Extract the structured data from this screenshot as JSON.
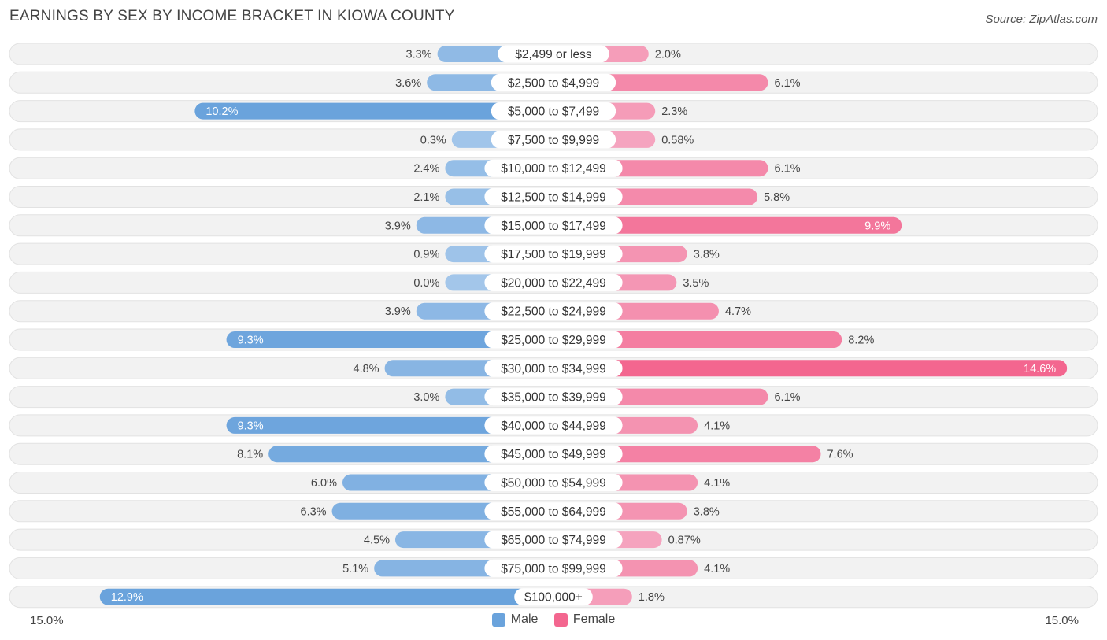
{
  "header": {
    "title": "EARNINGS BY SEX BY INCOME BRACKET IN KIOWA COUNTY",
    "source": "Source: ZipAtlas.com"
  },
  "legend": {
    "male": "Male",
    "female": "Female"
  },
  "axis": {
    "left_label": "15.0%",
    "right_label": "15.0%"
  },
  "colors": {
    "male_strong": "#6aa3dc",
    "male_light": "#a3c6ea",
    "female_strong": "#f3668f",
    "female_light": "#f5a7c1",
    "row_bg": "#f2f2f2",
    "row_border": "#e2e2e2"
  },
  "chart_data": {
    "type": "bar",
    "title": "EARNINGS BY SEX BY INCOME BRACKET IN KIOWA COUNTY",
    "orientation": "horizontal-diverging",
    "xlim": [
      -15,
      15
    ],
    "categories": [
      "$2,499 or less",
      "$2,500 to $4,999",
      "$5,000 to $7,499",
      "$7,500 to $9,999",
      "$10,000 to $12,499",
      "$12,500 to $14,999",
      "$15,000 to $17,499",
      "$17,500 to $19,999",
      "$20,000 to $22,499",
      "$22,500 to $24,999",
      "$25,000 to $29,999",
      "$30,000 to $34,999",
      "$35,000 to $39,999",
      "$40,000 to $44,999",
      "$45,000 to $49,999",
      "$50,000 to $54,999",
      "$55,000 to $64,999",
      "$65,000 to $74,999",
      "$75,000 to $99,999",
      "$100,000+"
    ],
    "series": [
      {
        "name": "Male",
        "values": [
          3.3,
          3.6,
          10.2,
          0.3,
          2.4,
          2.1,
          3.9,
          0.9,
          0.0,
          3.9,
          9.3,
          4.8,
          3.0,
          9.3,
          8.1,
          6.0,
          6.3,
          4.5,
          5.1,
          12.9
        ],
        "labels": [
          "3.3%",
          "3.6%",
          "10.2%",
          "0.3%",
          "2.4%",
          "2.1%",
          "3.9%",
          "0.9%",
          "0.0%",
          "3.9%",
          "9.3%",
          "4.8%",
          "3.0%",
          "9.3%",
          "8.1%",
          "6.0%",
          "6.3%",
          "4.5%",
          "5.1%",
          "12.9%"
        ]
      },
      {
        "name": "Female",
        "values": [
          2.0,
          6.1,
          2.3,
          0.58,
          6.1,
          5.8,
          9.9,
          3.8,
          3.5,
          4.7,
          8.2,
          14.6,
          6.1,
          4.1,
          7.6,
          4.1,
          3.8,
          0.87,
          4.1,
          1.8
        ],
        "labels": [
          "2.0%",
          "6.1%",
          "2.3%",
          "0.58%",
          "6.1%",
          "5.8%",
          "9.9%",
          "3.8%",
          "3.5%",
          "4.7%",
          "8.2%",
          "14.6%",
          "6.1%",
          "4.1%",
          "7.6%",
          "4.1%",
          "3.8%",
          "0.87%",
          "4.1%",
          "1.8%"
        ]
      }
    ]
  }
}
